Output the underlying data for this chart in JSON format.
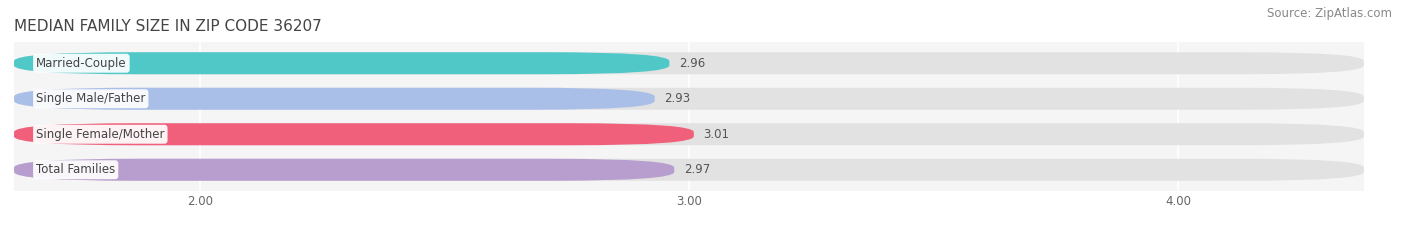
{
  "title": "MEDIAN FAMILY SIZE IN ZIP CODE 36207",
  "source": "Source: ZipAtlas.com",
  "categories": [
    "Married-Couple",
    "Single Male/Father",
    "Single Female/Mother",
    "Total Families"
  ],
  "values": [
    2.96,
    2.93,
    3.01,
    2.97
  ],
  "bar_colors": [
    "#50c8c8",
    "#aabfe8",
    "#f0607a",
    "#b89ece"
  ],
  "background_color": "#ffffff",
  "plot_bg_color": "#f5f5f5",
  "bar_bg_color": "#e2e2e2",
  "xlim": [
    1.62,
    4.38
  ],
  "xstart": 1.62,
  "xticks": [
    2.0,
    3.0,
    4.0
  ],
  "xtick_labels": [
    "2.00",
    "3.00",
    "4.00"
  ],
  "title_fontsize": 11,
  "source_fontsize": 8.5,
  "label_fontsize": 8.5,
  "value_fontsize": 8.5
}
